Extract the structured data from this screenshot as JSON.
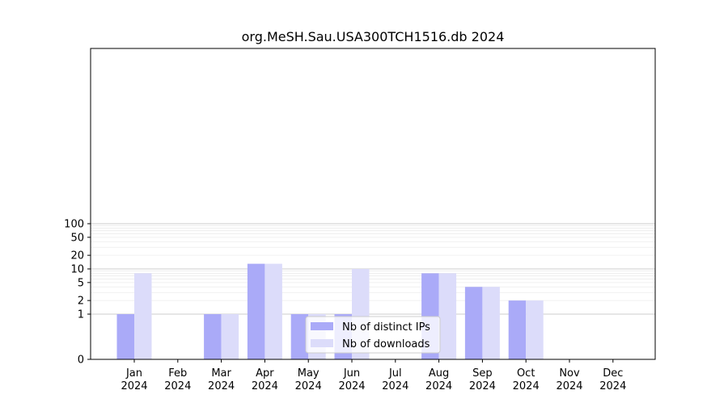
{
  "chart_data": {
    "type": "bar",
    "title": "org.MeSH.Sau.USA300TCH1516.db 2024",
    "categories": [
      [
        "Jan",
        "2024"
      ],
      [
        "Feb",
        "2024"
      ],
      [
        "Mar",
        "2024"
      ],
      [
        "Apr",
        "2024"
      ],
      [
        "May",
        "2024"
      ],
      [
        "Jun",
        "2024"
      ],
      [
        "Jul",
        "2024"
      ],
      [
        "Aug",
        "2024"
      ],
      [
        "Sep",
        "2024"
      ],
      [
        "Oct",
        "2024"
      ],
      [
        "Nov",
        "2024"
      ],
      [
        "Dec",
        "2024"
      ]
    ],
    "series": [
      {
        "name": "Nb of distinct IPs",
        "color": "#aaaaf8",
        "values": [
          1,
          0,
          1,
          13,
          1,
          1,
          0,
          8,
          4,
          2,
          0,
          0
        ]
      },
      {
        "name": "Nb of downloads",
        "color": "#dcdcfa",
        "values": [
          8,
          0,
          1,
          13,
          1,
          10,
          0,
          8,
          4,
          2,
          0,
          0
        ]
      }
    ],
    "y_scale": "symlog",
    "y_ticks": [
      0,
      1,
      2,
      5,
      10,
      20,
      50,
      100
    ],
    "ylim": [
      0,
      120
    ],
    "grid": true,
    "legend_position": "lower-center"
  }
}
